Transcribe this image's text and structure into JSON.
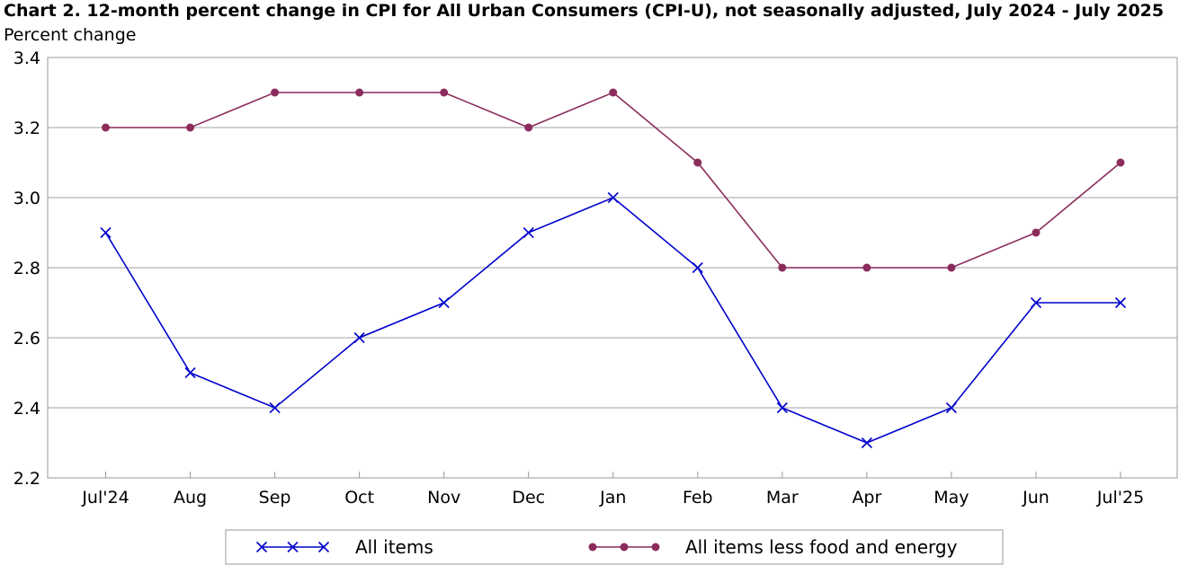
{
  "chart_data": {
    "type": "line",
    "title": "Chart 2. 12-month percent change in CPI for All Urban Consumers (CPI-U), not seasonally adjusted, July 2024 - July 2025",
    "ylabel": "Percent change",
    "xlabel": "",
    "categories": [
      "Jul'24",
      "Aug",
      "Sep",
      "Oct",
      "Nov",
      "Dec",
      "Jan",
      "Feb",
      "Mar",
      "Apr",
      "May",
      "Jun",
      "Jul'25"
    ],
    "ylim": [
      2.2,
      3.4
    ],
    "yticks": [
      "2.2",
      "2.4",
      "2.6",
      "2.8",
      "3.0",
      "3.2",
      "3.4"
    ],
    "grid": "horizontal",
    "legend_position": "bottom",
    "series": [
      {
        "name": "All items",
        "color": "#0000cc",
        "marker": "x",
        "values": [
          2.9,
          2.5,
          2.4,
          2.6,
          2.7,
          2.9,
          3.0,
          2.8,
          2.4,
          2.3,
          2.4,
          2.7,
          2.7
        ]
      },
      {
        "name": "All items less food and energy",
        "color": "#8b2c5c",
        "marker": "circle",
        "values": [
          3.2,
          3.2,
          3.3,
          3.3,
          3.3,
          3.2,
          3.3,
          3.1,
          2.8,
          2.8,
          2.8,
          2.9,
          3.1
        ]
      }
    ]
  }
}
